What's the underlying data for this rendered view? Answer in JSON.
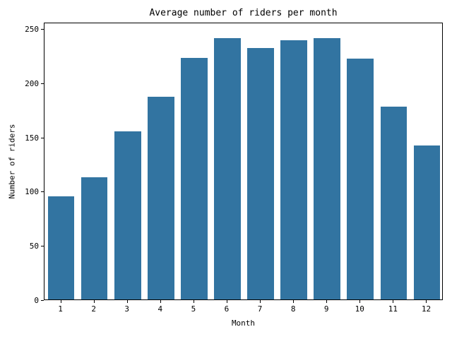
{
  "chart_data": {
    "type": "bar",
    "title": "Average number of riders per month",
    "xlabel": "Month",
    "ylabel": "Number of riders",
    "categories": [
      "1",
      "2",
      "3",
      "4",
      "5",
      "6",
      "7",
      "8",
      "9",
      "10",
      "11",
      "12"
    ],
    "values": [
      95,
      113,
      155,
      187,
      223,
      241,
      232,
      239,
      241,
      222,
      178,
      142
    ],
    "yticks": [
      0,
      50,
      100,
      150,
      200,
      250
    ],
    "ylim": [
      0,
      256
    ],
    "bar_color": "#3274A1",
    "axis_color": "#000000",
    "background_color": "#FFFFFF",
    "bar_width_fraction": 0.8,
    "grid": false,
    "legend_position": "none"
  }
}
